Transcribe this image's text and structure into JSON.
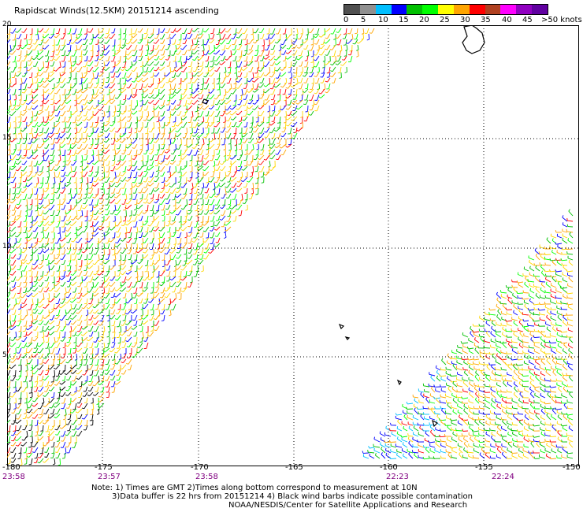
{
  "title": "Rapidscat Winds(12.5KM) 20151214 ascending",
  "colorbar": {
    "colors": [
      "#505050",
      "#909090",
      "#00bfff",
      "#0000ff",
      "#00c000",
      "#00ff00",
      "#ffff00",
      "#ffa500",
      "#ff0000",
      "#b04020",
      "#ff00ff",
      "#9000c0",
      "#6000a0"
    ],
    "labels": [
      "0",
      "5",
      "10",
      "15",
      "20",
      "25",
      "30",
      "35",
      "40",
      "45",
      ">50 knots"
    ]
  },
  "map": {
    "lat_labels": [
      "20",
      "15",
      "10",
      "5"
    ],
    "lon_labels": [
      "-180",
      "-175",
      "-170",
      "-165",
      "-160",
      "-155",
      "-150"
    ],
    "time_labels": [
      "23:58",
      "23:57",
      "23:58",
      "22:23",
      "22:24"
    ]
  },
  "notes": {
    "line1": "Note: 1) Times are GMT 2)Times along bottom correspond to measurement at 10N",
    "line2": "3)Data buffer is 22 hrs from 20151214 4) Black wind barbs indicate possible contamination",
    "line3": "NOAA/NESDIS/Center for Satellite Applications and Research"
  }
}
